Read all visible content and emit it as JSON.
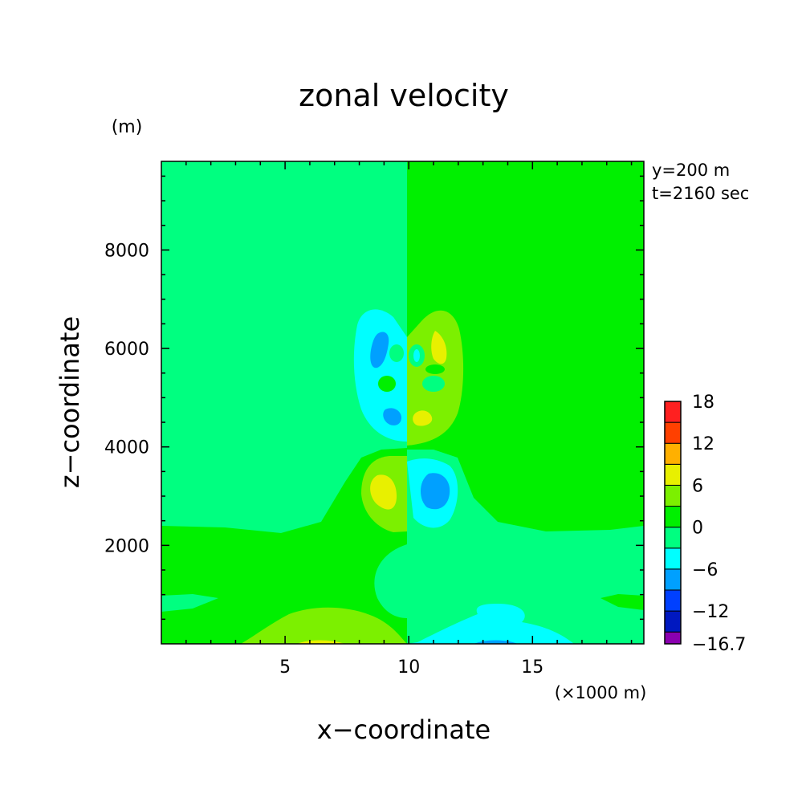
{
  "chart_data": {
    "type": "heatmap",
    "title": "zonal velocity",
    "xlabel": "x−coordinate",
    "ylabel": "z−coordinate",
    "x_unit": "(×1000 m)",
    "y_unit": "(m)",
    "annotations": [
      "y=200 m",
      "t=2160 sec"
    ],
    "xlim": [
      0,
      19.5
    ],
    "ylim": [
      0,
      9800
    ],
    "x_ticks": [
      5,
      10,
      15
    ],
    "y_ticks": [
      2000,
      4000,
      6000,
      8000
    ],
    "colorbar": {
      "levels": [
        -16.7,
        -15,
        -12,
        -9,
        -6,
        -3,
        0,
        3,
        6,
        9,
        12,
        15,
        18
      ],
      "labels": [
        "18",
        "12",
        "6",
        "0",
        "−6",
        "−12",
        "−16.7"
      ],
      "colors": [
        "#8b00b0",
        "#0018c0",
        "#0040ff",
        "#00a0ff",
        "#00ffff",
        "#00ff80",
        "#00f000",
        "#7cf000",
        "#e8f000",
        "#ffb000",
        "#ff4000",
        "#ff2020"
      ]
    },
    "background_left": "#00ff80",
    "background_right": "#00f000",
    "regions": [
      {
        "name": "left upper lobe",
        "value": -3,
        "color": "#00ffff",
        "cx": 9.1,
        "cz": 5700
      },
      {
        "name": "left upper core",
        "value": -9,
        "color": "#00a0ff",
        "cx": 8.9,
        "cz": 6050
      },
      {
        "name": "left lower core",
        "value": -9,
        "color": "#00a0ff",
        "cx": 9.2,
        "cz": 4750
      },
      {
        "name": "right upper lobe",
        "value": 3,
        "color": "#7cf000",
        "cx": 11.2,
        "cz": 5700
      },
      {
        "name": "right upper core",
        "value": 6,
        "color": "#e8f000",
        "cx": 11.3,
        "cz": 6050
      },
      {
        "name": "right lower core",
        "value": 6,
        "color": "#e8f000",
        "cx": 10.6,
        "cz": 4800
      },
      {
        "name": "left mid lobe",
        "value": 3,
        "color": "#7cf000",
        "cx": 8.7,
        "cz": 3350
      },
      {
        "name": "left mid core",
        "value": 6,
        "color": "#e8f000",
        "cx": 8.9,
        "cz": 3200
      },
      {
        "name": "right mid lobe",
        "value": -3,
        "color": "#00ffff",
        "cx": 11.3,
        "cz": 3250
      },
      {
        "name": "right mid core",
        "value": -9,
        "color": "#00a0ff",
        "cx": 11.4,
        "cz": 3150
      },
      {
        "name": "low bubble",
        "value": 0,
        "color": "#00ff80",
        "cx": 10.0,
        "cz": 1350
      },
      {
        "name": "bottom left positive",
        "value": 3,
        "color": "#7cf000",
        "cx": 6.5,
        "cz": 300
      },
      {
        "name": "bottom right negative",
        "value": -3,
        "color": "#00ffff",
        "cx": 14.5,
        "cz": 300
      }
    ]
  }
}
